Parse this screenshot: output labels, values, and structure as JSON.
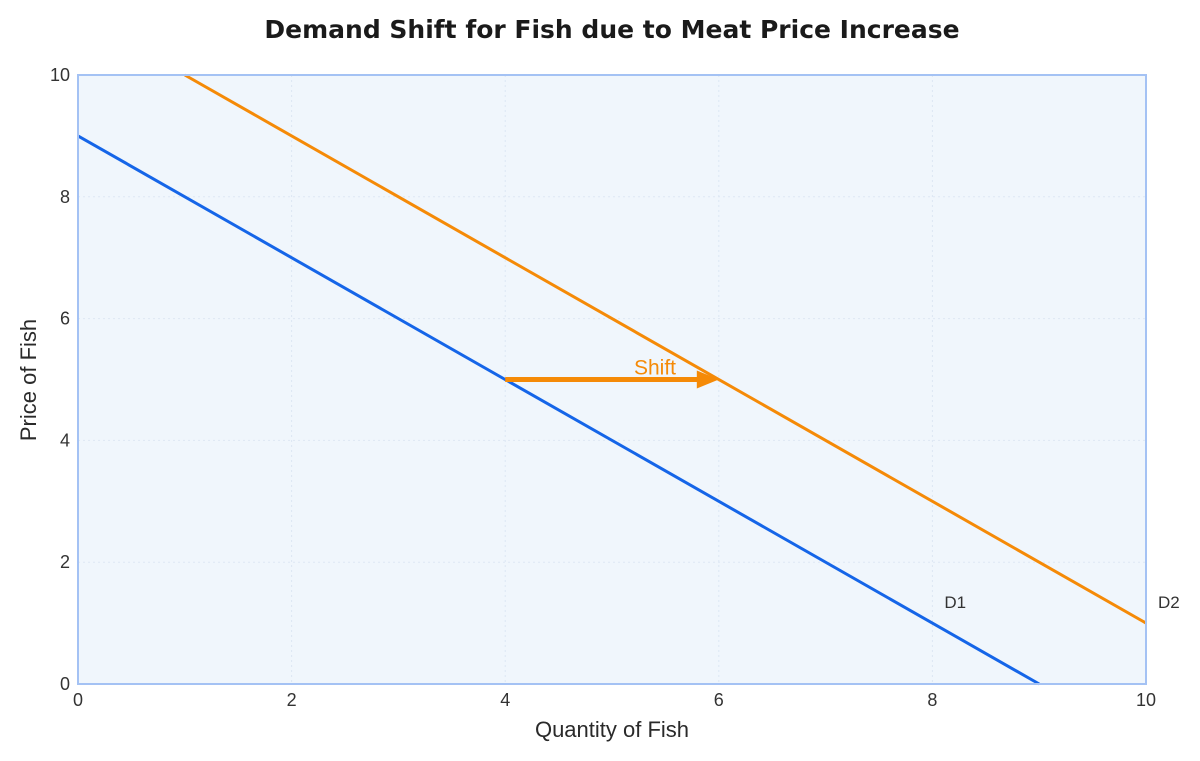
{
  "chart_data": {
    "type": "line",
    "title": "Demand Shift for Fish due to Meat Price Increase",
    "xlabel": "Quantity of Fish",
    "ylabel": "Price of Fish",
    "xlim": [
      0,
      10
    ],
    "ylim": [
      0,
      10
    ],
    "x_ticks": [
      "0",
      "2",
      "4",
      "6",
      "8",
      "10"
    ],
    "y_ticks": [
      "0",
      "2",
      "4",
      "6",
      "8",
      "10"
    ],
    "grid": true,
    "series": [
      {
        "name": "D1",
        "color": "#1565e8",
        "x": [
          0,
          9
        ],
        "y": [
          9,
          0
        ],
        "label_at": {
          "x": 8,
          "y": 1
        }
      },
      {
        "name": "D2",
        "color": "#f58a07",
        "x": [
          1,
          10
        ],
        "y": [
          10,
          1
        ],
        "label_at": {
          "x": 10,
          "y": 1
        }
      }
    ],
    "annotations": [
      {
        "text": "Shift",
        "type": "arrow",
        "from": {
          "x": 4,
          "y": 5
        },
        "to": {
          "x": 6,
          "y": 5
        },
        "color": "#f58a07"
      }
    ]
  }
}
